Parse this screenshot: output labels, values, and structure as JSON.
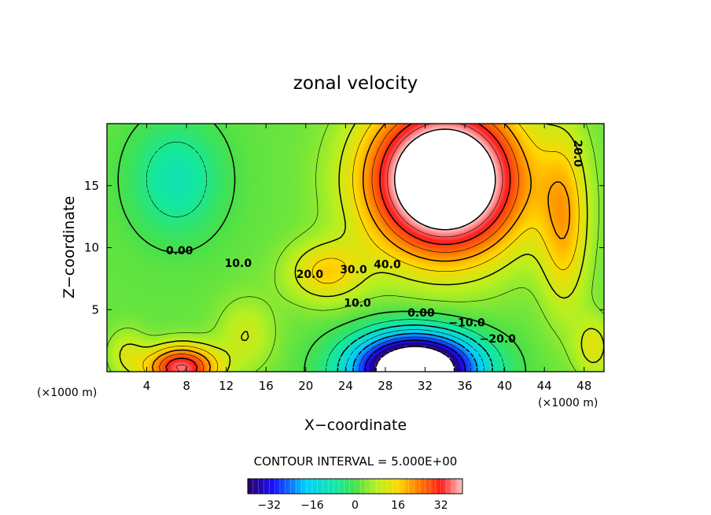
{
  "chart_data": {
    "type": "heatmap",
    "title": "zonal velocity",
    "xlabel": "X−coordinate",
    "ylabel": "Z−coordinate",
    "x_unit_label": "(×1000 m)",
    "xlim": [
      0,
      50
    ],
    "ylim": [
      0,
      20
    ],
    "x_ticks": [
      4,
      8,
      12,
      16,
      20,
      24,
      28,
      32,
      36,
      40,
      44,
      48
    ],
    "y_ticks": [
      5,
      10,
      15
    ],
    "contour_interval_label": "CONTOUR INTERVAL = 5.000E+00",
    "contour_interval": 5,
    "colorbar": {
      "min": -40,
      "max": 40,
      "ticks": [
        -32,
        -16,
        0,
        16,
        32
      ],
      "tick_labels": [
        "−32",
        "−16",
        "0",
        "16",
        "32"
      ]
    },
    "contour_labels": [
      {
        "text": "0.00",
        "x": 7.3,
        "y": 9.7
      },
      {
        "text": "10.0",
        "x": 13.2,
        "y": 8.7
      },
      {
        "text": "20.0",
        "x": 20.4,
        "y": 7.8
      },
      {
        "text": "30.0",
        "x": 24.8,
        "y": 8.2
      },
      {
        "text": "40.0",
        "x": 28.2,
        "y": 8.6
      },
      {
        "text": "10.0",
        "x": 25.2,
        "y": 5.5
      },
      {
        "text": "0.00",
        "x": 31.6,
        "y": 4.7
      },
      {
        "text": "−10.0",
        "x": 36.2,
        "y": 3.9
      },
      {
        "text": "−20.0",
        "x": 39.3,
        "y": 2.6
      },
      {
        "text": "20.0",
        "x": 47.3,
        "y": 17.6
      }
    ],
    "features": [
      {
        "kind": "max",
        "x": 34,
        "y": 15,
        "value_gt": 40,
        "note": "upper jet core, blank (above colour range)"
      },
      {
        "kind": "min",
        "x": 31,
        "y": 0.6,
        "value_lt": -40,
        "note": "lower reversed flow core, blank (below colour range)"
      },
      {
        "kind": "max",
        "x": 7.5,
        "y": 0.5,
        "value": 32
      },
      {
        "kind": "min",
        "x": 7,
        "y": 15,
        "value": -8
      }
    ]
  }
}
